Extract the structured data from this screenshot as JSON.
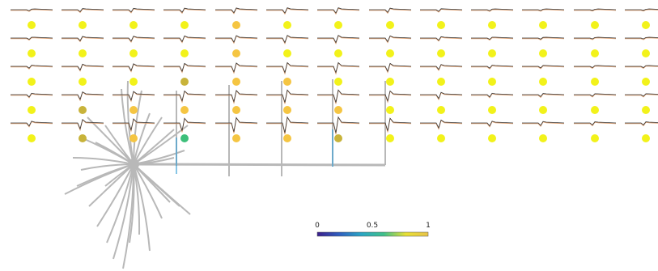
{
  "colorbar": {
    "min_label": "0",
    "mid_label": "0.5",
    "max_label": "1",
    "colormap": "viridis-like",
    "stops": [
      "#3b1f8c",
      "#2f5fbf",
      "#2aa6c4",
      "#3fc08a",
      "#e8e034",
      "#e8c34a"
    ]
  },
  "grid": {
    "columns": 13,
    "rows": 6,
    "dot_colors": {
      "default": "#f2f21a",
      "orange": "#f5c542",
      "green": "#3dbf7a",
      "olive": "#c8b33a"
    },
    "dot_value_rows": [
      [
        1,
        1,
        1,
        1,
        0.8,
        1,
        1,
        1,
        1,
        1,
        1,
        1,
        1
      ],
      [
        1,
        1,
        1,
        1,
        0.8,
        1,
        1,
        1,
        1,
        1,
        1,
        1,
        1
      ],
      [
        1,
        1,
        1,
        0.9,
        0.8,
        0.8,
        1,
        1,
        1,
        1,
        1,
        1,
        1
      ],
      [
        1,
        0.9,
        0.8,
        0.8,
        0.8,
        0.8,
        0.8,
        1,
        1,
        1,
        1,
        1,
        1
      ],
      [
        1,
        0.9,
        0.8,
        0.8,
        0.8,
        0.8,
        0.8,
        1,
        1,
        1,
        1,
        1,
        1
      ],
      [
        1,
        0.9,
        0.8,
        0.6,
        0.8,
        0.8,
        0.85,
        1,
        1,
        1,
        1,
        1,
        1
      ]
    ]
  },
  "morphology": {
    "soma_color": "#b8b8b8",
    "axon_color": "#b8b8b8"
  },
  "trace_colors": {
    "recorded": "#333333",
    "model": "#e0a070",
    "model_alt": "#3a9fd6"
  }
}
